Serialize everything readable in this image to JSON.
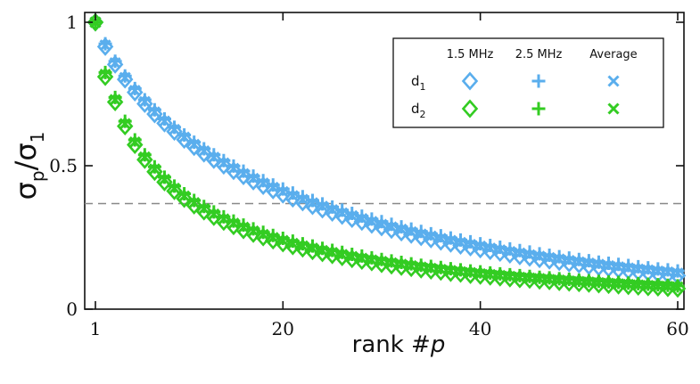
{
  "chart_data": {
    "type": "scatter",
    "title": "",
    "xlabel_main": "rank #",
    "xlabel_var": "p",
    "ylabel_sigma": "σ",
    "ylabel_num_sub": "p",
    "ylabel_slash": "/",
    "ylabel_den_sub": "1",
    "xlim": [
      0,
      60
    ],
    "ylim": [
      0,
      1
    ],
    "xticks": [
      1,
      20,
      40,
      60
    ],
    "xtick_labels": [
      "1",
      "20",
      "40",
      "60"
    ],
    "yticks": [
      0,
      0.5,
      1
    ],
    "ytick_labels": [
      "0",
      "0.5",
      "1"
    ],
    "reference_line": {
      "y": 0.368,
      "style": "dashed",
      "color": "#888888"
    },
    "x": [
      1,
      2,
      3,
      4,
      5,
      6,
      7,
      8,
      9,
      10,
      11,
      12,
      13,
      14,
      15,
      16,
      17,
      18,
      19,
      20,
      21,
      22,
      23,
      24,
      25,
      26,
      27,
      28,
      29,
      30,
      31,
      32,
      33,
      34,
      35,
      36,
      37,
      38,
      39,
      40,
      41,
      42,
      43,
      44,
      45,
      46,
      47,
      48,
      49,
      50,
      51,
      52,
      53,
      54,
      55,
      56,
      57,
      58,
      59,
      60
    ],
    "series": [
      {
        "name": "d1, 1.5 MHz",
        "row": "d1",
        "freq": "1.5 MHz",
        "marker": "diamond",
        "color": "#5aaeed",
        "values": [
          1.0,
          0.915,
          0.853,
          0.801,
          0.756,
          0.716,
          0.68,
          0.648,
          0.619,
          0.591,
          0.566,
          0.543,
          0.521,
          0.501,
          0.482,
          0.464,
          0.446,
          0.43,
          0.415,
          0.4,
          0.386,
          0.373,
          0.36,
          0.348,
          0.337,
          0.326,
          0.315,
          0.305,
          0.295,
          0.286,
          0.277,
          0.268,
          0.26,
          0.252,
          0.244,
          0.236,
          0.229,
          0.222,
          0.216,
          0.209,
          0.203,
          0.197,
          0.191,
          0.185,
          0.18,
          0.175,
          0.17,
          0.165,
          0.16,
          0.156,
          0.151,
          0.147,
          0.143,
          0.139,
          0.135,
          0.131,
          0.128,
          0.124,
          0.121,
          0.117
        ]
      },
      {
        "name": "d1, 2.5 MHz",
        "row": "d1",
        "freq": "2.5 MHz",
        "marker": "plus",
        "color": "#5aaeed",
        "values": [
          1.0,
          0.925,
          0.864,
          0.813,
          0.769,
          0.73,
          0.695,
          0.663,
          0.634,
          0.607,
          0.582,
          0.559,
          0.538,
          0.518,
          0.499,
          0.481,
          0.464,
          0.448,
          0.433,
          0.419,
          0.405,
          0.392,
          0.379,
          0.367,
          0.356,
          0.345,
          0.334,
          0.324,
          0.314,
          0.305,
          0.296,
          0.287,
          0.279,
          0.271,
          0.263,
          0.256,
          0.248,
          0.241,
          0.235,
          0.228,
          0.222,
          0.216,
          0.21,
          0.204,
          0.199,
          0.193,
          0.188,
          0.183,
          0.178,
          0.173,
          0.169,
          0.164,
          0.16,
          0.156,
          0.152,
          0.148,
          0.144,
          0.14,
          0.137,
          0.133
        ]
      },
      {
        "name": "d1, Average",
        "row": "d1",
        "freq": "Average",
        "marker": "x",
        "color": "#5aaeed",
        "values": [
          1.0,
          0.92,
          0.858,
          0.807,
          0.762,
          0.723,
          0.687,
          0.655,
          0.626,
          0.599,
          0.574,
          0.551,
          0.529,
          0.509,
          0.49,
          0.472,
          0.455,
          0.439,
          0.424,
          0.409,
          0.395,
          0.382,
          0.37,
          0.358,
          0.346,
          0.335,
          0.325,
          0.315,
          0.305,
          0.295,
          0.286,
          0.278,
          0.269,
          0.261,
          0.254,
          0.246,
          0.239,
          0.232,
          0.225,
          0.219,
          0.212,
          0.206,
          0.2,
          0.195,
          0.189,
          0.184,
          0.179,
          0.174,
          0.169,
          0.164,
          0.16,
          0.156,
          0.151,
          0.147,
          0.143,
          0.139,
          0.136,
          0.132,
          0.129,
          0.125
        ]
      },
      {
        "name": "d2, 1.5 MHz",
        "row": "d2",
        "freq": "1.5 MHz",
        "marker": "diamond",
        "color": "#33cc22",
        "values": [
          1.0,
          0.81,
          0.722,
          0.638,
          0.573,
          0.521,
          0.479,
          0.443,
          0.412,
          0.385,
          0.362,
          0.341,
          0.322,
          0.305,
          0.29,
          0.276,
          0.263,
          0.251,
          0.24,
          0.23,
          0.22,
          0.212,
          0.203,
          0.196,
          0.189,
          0.182,
          0.175,
          0.169,
          0.164,
          0.158,
          0.153,
          0.148,
          0.144,
          0.139,
          0.135,
          0.131,
          0.127,
          0.124,
          0.12,
          0.117,
          0.114,
          0.111,
          0.108,
          0.105,
          0.103,
          0.1,
          0.098,
          0.095,
          0.093,
          0.091,
          0.089,
          0.087,
          0.085,
          0.083,
          0.081,
          0.079,
          0.077,
          0.076,
          0.074,
          0.072
        ]
      },
      {
        "name": "d2, 2.5 MHz",
        "row": "d2",
        "freq": "2.5 MHz",
        "marker": "plus",
        "color": "#33cc22",
        "values": [
          1.0,
          0.825,
          0.738,
          0.655,
          0.59,
          0.538,
          0.496,
          0.46,
          0.429,
          0.402,
          0.379,
          0.358,
          0.339,
          0.322,
          0.307,
          0.293,
          0.28,
          0.268,
          0.257,
          0.247,
          0.237,
          0.228,
          0.22,
          0.212,
          0.205,
          0.198,
          0.191,
          0.185,
          0.179,
          0.173,
          0.168,
          0.163,
          0.158,
          0.153,
          0.149,
          0.145,
          0.141,
          0.137,
          0.133,
          0.13,
          0.126,
          0.123,
          0.12,
          0.117,
          0.114,
          0.111,
          0.109,
          0.106,
          0.104,
          0.101,
          0.099,
          0.097,
          0.095,
          0.093,
          0.091,
          0.089,
          0.087,
          0.085,
          0.083,
          0.081
        ]
      },
      {
        "name": "d2, Average",
        "row": "d2",
        "freq": "Average",
        "marker": "x",
        "color": "#33cc22",
        "values": [
          1.0,
          0.818,
          0.73,
          0.646,
          0.582,
          0.53,
          0.488,
          0.452,
          0.421,
          0.394,
          0.371,
          0.35,
          0.331,
          0.314,
          0.299,
          0.285,
          0.272,
          0.26,
          0.249,
          0.239,
          0.229,
          0.22,
          0.212,
          0.204,
          0.197,
          0.19,
          0.183,
          0.177,
          0.171,
          0.166,
          0.161,
          0.156,
          0.151,
          0.146,
          0.142,
          0.138,
          0.134,
          0.13,
          0.127,
          0.123,
          0.12,
          0.117,
          0.114,
          0.111,
          0.108,
          0.106,
          0.103,
          0.101,
          0.098,
          0.096,
          0.094,
          0.092,
          0.09,
          0.088,
          0.086,
          0.084,
          0.082,
          0.08,
          0.079,
          0.077
        ]
      }
    ],
    "legend": {
      "placement": "top-right",
      "column_headers": [
        "1.5 MHz",
        "2.5 MHz",
        "Average"
      ],
      "rows": [
        {
          "label": "d",
          "sub": "1",
          "color": "#5aaeed"
        },
        {
          "label": "d",
          "sub": "2",
          "color": "#33cc22"
        }
      ],
      "markers": [
        "diamond",
        "plus",
        "x"
      ]
    }
  }
}
